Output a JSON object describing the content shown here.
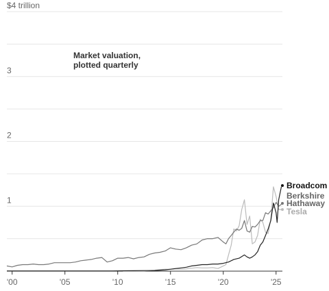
{
  "chart_data": {
    "type": "line",
    "title": "",
    "annotation": [
      "Market valuation,",
      "plotted quarterly"
    ],
    "y_unit": "$ trillion",
    "y_ticks": [
      {
        "value": 4,
        "label": "$4 trillion"
      },
      {
        "value": 3,
        "label": "3"
      },
      {
        "value": 2,
        "label": "2"
      },
      {
        "value": 1,
        "label": "1"
      }
    ],
    "y_gridlines": [
      0.5,
      1,
      1.5,
      2,
      2.5,
      3,
      3.5,
      4
    ],
    "ylim": [
      0,
      4
    ],
    "xlim": [
      1999.5,
      2025.6
    ],
    "x_ticks": [
      {
        "value": 2000,
        "label": "'00"
      },
      {
        "value": 2005,
        "label": "'05"
      },
      {
        "value": 2010,
        "label": "'10"
      },
      {
        "value": 2015,
        "label": "'15"
      },
      {
        "value": 2020,
        "label": "'20"
      },
      {
        "value": 2025,
        "label": "'25"
      }
    ],
    "series": [
      {
        "name": "Tesla",
        "color": "#bbbbbb",
        "points": [
          [
            2010.5,
            0.002
          ],
          [
            2011.5,
            0.003
          ],
          [
            2012.5,
            0.003
          ],
          [
            2013.0,
            0.01
          ],
          [
            2013.5,
            0.015
          ],
          [
            2014.0,
            0.025
          ],
          [
            2014.5,
            0.03
          ],
          [
            2015.0,
            0.028
          ],
          [
            2015.5,
            0.035
          ],
          [
            2016.0,
            0.03
          ],
          [
            2016.5,
            0.035
          ],
          [
            2017.0,
            0.045
          ],
          [
            2017.5,
            0.055
          ],
          [
            2018.0,
            0.05
          ],
          [
            2018.5,
            0.05
          ],
          [
            2019.0,
            0.055
          ],
          [
            2019.5,
            0.04
          ],
          [
            2020.0,
            0.08
          ],
          [
            2020.25,
            0.1
          ],
          [
            2020.5,
            0.25
          ],
          [
            2020.75,
            0.4
          ],
          [
            2021.0,
            0.65
          ],
          [
            2021.25,
            0.62
          ],
          [
            2021.5,
            0.7
          ],
          [
            2021.75,
            0.95
          ],
          [
            2022.0,
            1.1
          ],
          [
            2022.25,
            0.72
          ],
          [
            2022.5,
            0.85
          ],
          [
            2022.75,
            0.42
          ],
          [
            2023.0,
            0.45
          ],
          [
            2023.25,
            0.55
          ],
          [
            2023.5,
            0.8
          ],
          [
            2023.75,
            0.75
          ],
          [
            2024.0,
            0.6
          ],
          [
            2024.25,
            0.58
          ],
          [
            2024.5,
            0.8
          ],
          [
            2024.75,
            1.3
          ],
          [
            2025.0,
            1.15
          ],
          [
            2025.25,
            0.95
          ],
          [
            2025.5,
            0.95
          ]
        ]
      },
      {
        "name": "Berkshire Hathaway",
        "color": "#777777",
        "points": [
          [
            1999.5,
            0.08
          ],
          [
            2000.0,
            0.065
          ],
          [
            2000.5,
            0.09
          ],
          [
            2001.0,
            0.1
          ],
          [
            2001.5,
            0.1
          ],
          [
            2002.0,
            0.11
          ],
          [
            2002.5,
            0.1
          ],
          [
            2003.0,
            0.1
          ],
          [
            2003.5,
            0.11
          ],
          [
            2004.0,
            0.13
          ],
          [
            2004.5,
            0.13
          ],
          [
            2005.0,
            0.13
          ],
          [
            2005.5,
            0.13
          ],
          [
            2006.0,
            0.14
          ],
          [
            2006.5,
            0.16
          ],
          [
            2007.0,
            0.17
          ],
          [
            2007.5,
            0.18
          ],
          [
            2008.0,
            0.2
          ],
          [
            2008.5,
            0.21
          ],
          [
            2009.0,
            0.14
          ],
          [
            2009.5,
            0.16
          ],
          [
            2010.0,
            0.2
          ],
          [
            2010.5,
            0.2
          ],
          [
            2011.0,
            0.21
          ],
          [
            2011.5,
            0.19
          ],
          [
            2012.0,
            0.21
          ],
          [
            2012.5,
            0.22
          ],
          [
            2013.0,
            0.26
          ],
          [
            2013.5,
            0.28
          ],
          [
            2014.0,
            0.29
          ],
          [
            2014.5,
            0.31
          ],
          [
            2015.0,
            0.36
          ],
          [
            2015.5,
            0.34
          ],
          [
            2016.0,
            0.33
          ],
          [
            2016.5,
            0.36
          ],
          [
            2017.0,
            0.4
          ],
          [
            2017.5,
            0.42
          ],
          [
            2018.0,
            0.48
          ],
          [
            2018.5,
            0.5
          ],
          [
            2019.0,
            0.5
          ],
          [
            2019.5,
            0.52
          ],
          [
            2020.0,
            0.45
          ],
          [
            2020.25,
            0.42
          ],
          [
            2020.5,
            0.5
          ],
          [
            2020.75,
            0.55
          ],
          [
            2021.0,
            0.6
          ],
          [
            2021.25,
            0.65
          ],
          [
            2021.5,
            0.63
          ],
          [
            2021.75,
            0.66
          ],
          [
            2022.0,
            0.78
          ],
          [
            2022.25,
            0.62
          ],
          [
            2022.5,
            0.6
          ],
          [
            2022.75,
            0.69
          ],
          [
            2023.0,
            0.68
          ],
          [
            2023.25,
            0.72
          ],
          [
            2023.5,
            0.78
          ],
          [
            2023.75,
            0.78
          ],
          [
            2024.0,
            0.9
          ],
          [
            2024.25,
            0.88
          ],
          [
            2024.5,
            0.93
          ],
          [
            2024.75,
            0.98
          ],
          [
            2025.0,
            1.06
          ],
          [
            2025.25,
            1.0
          ],
          [
            2025.5,
            1.03
          ]
        ]
      },
      {
        "name": "Broadcom",
        "color": "#222222",
        "points": [
          [
            1999.5,
            0.003
          ],
          [
            2005.0,
            0.003
          ],
          [
            2009.5,
            0.003
          ],
          [
            2010.5,
            0.005
          ],
          [
            2011.5,
            0.006
          ],
          [
            2012.5,
            0.008
          ],
          [
            2013.5,
            0.01
          ],
          [
            2014.5,
            0.02
          ],
          [
            2015.0,
            0.03
          ],
          [
            2015.5,
            0.04
          ],
          [
            2016.0,
            0.05
          ],
          [
            2016.5,
            0.06
          ],
          [
            2017.0,
            0.08
          ],
          [
            2017.5,
            0.09
          ],
          [
            2018.0,
            0.1
          ],
          [
            2018.5,
            0.1
          ],
          [
            2019.0,
            0.11
          ],
          [
            2019.5,
            0.11
          ],
          [
            2020.0,
            0.12
          ],
          [
            2020.5,
            0.14
          ],
          [
            2021.0,
            0.18
          ],
          [
            2021.5,
            0.2
          ],
          [
            2022.0,
            0.25
          ],
          [
            2022.25,
            0.22
          ],
          [
            2022.5,
            0.2
          ],
          [
            2022.75,
            0.22
          ],
          [
            2023.0,
            0.25
          ],
          [
            2023.25,
            0.3
          ],
          [
            2023.5,
            0.4
          ],
          [
            2023.75,
            0.45
          ],
          [
            2024.0,
            0.55
          ],
          [
            2024.25,
            0.65
          ],
          [
            2024.5,
            0.78
          ],
          [
            2024.75,
            1.05
          ],
          [
            2025.0,
            0.9
          ],
          [
            2025.1,
            0.75
          ],
          [
            2025.25,
            1.1
          ],
          [
            2025.5,
            1.3
          ]
        ]
      }
    ],
    "end_labels": [
      {
        "series": "Broadcom",
        "lines": [
          "Broadcom"
        ]
      },
      {
        "series": "Berkshire Hathaway",
        "lines": [
          "Berkshire",
          "Hathaway"
        ]
      },
      {
        "series": "Tesla",
        "lines": [
          "Tesla"
        ]
      }
    ]
  }
}
